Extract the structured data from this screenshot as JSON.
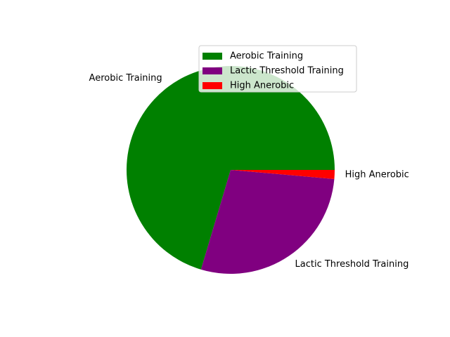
{
  "chart_data": {
    "type": "pie",
    "labels": [
      "Aerobic Training",
      "Lactic Threshold Training",
      "High Anerobic"
    ],
    "values": [
      70.4,
      28.2,
      1.4
    ],
    "colors": [
      "#008000",
      "#800080",
      "#ff0000"
    ],
    "start_angle_deg": 0,
    "direction": "counterclockwise",
    "legend": {
      "placement": "upper-right",
      "entries": [
        "Aerobic Training",
        "Lactic Threshold Training",
        "High Anerobic"
      ]
    }
  }
}
